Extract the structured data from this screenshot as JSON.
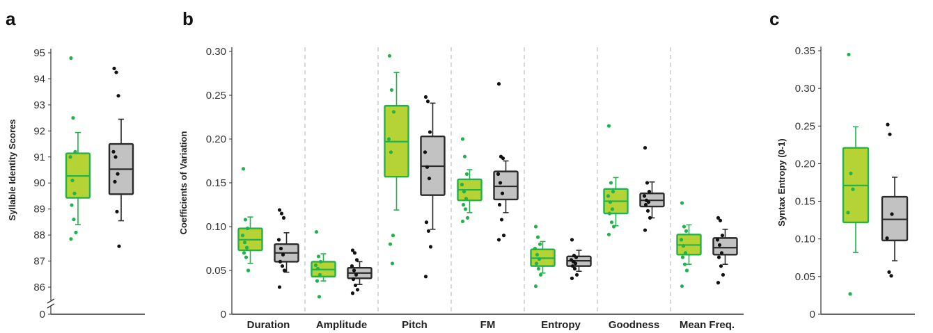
{
  "colors": {
    "group1_fill": "#b5d334",
    "group1_stroke": "#22b24c",
    "group1_dot": "#22b24c",
    "group2_fill": "#c2c2c2",
    "group2_stroke": "#2a2a2a",
    "group2_dot": "#111111",
    "divider": "#bdbdbd"
  },
  "chart_data": [
    {
      "panel": "a",
      "type": "box",
      "ylabel": "Syllable Identity Scores",
      "yticks": [
        0,
        86,
        87,
        88,
        89,
        90,
        91,
        92,
        93,
        94,
        95
      ],
      "axis_break": true,
      "ylim": [
        86,
        95
      ],
      "groups": [
        {
          "q1": 89.43,
          "median": 90.27,
          "q3": 91.14,
          "whisker_low": 88.4,
          "whisker_high": 91.94,
          "points": [
            94.8,
            92.5,
            91.2,
            91.0,
            90.1,
            89.6,
            89.15,
            88.6,
            88.1,
            87.85
          ]
        },
        {
          "q1": 89.57,
          "median": 90.53,
          "q3": 91.5,
          "whisker_low": 88.55,
          "whisker_high": 92.45,
          "points": [
            94.4,
            94.25,
            93.35,
            91.2,
            91.0,
            90.35,
            90.05,
            88.9,
            87.57
          ]
        }
      ]
    },
    {
      "panel": "b",
      "type": "box",
      "ylabel": "Coefficients of Variation",
      "yticks": [
        "0",
        "0.05",
        "0.10",
        "0.15",
        "0.20",
        "0.25",
        "0.30"
      ],
      "ylim": [
        0,
        0.3
      ],
      "categories": [
        "Duration",
        "Amplitude",
        "Pitch",
        "FM",
        "Entropy",
        "Goodness",
        "Mean Freq."
      ],
      "groups": [
        [
          {
            "q1": 0.073,
            "median": 0.085,
            "q3": 0.098,
            "whisker_low": 0.058,
            "whisker_high": 0.111,
            "points": [
              0.166,
              0.108,
              0.098,
              0.09,
              0.082,
              0.076,
              0.07,
              0.065,
              0.05
            ]
          },
          {
            "q1": 0.06,
            "median": 0.07,
            "q3": 0.08,
            "whisker_low": 0.048,
            "whisker_high": 0.093,
            "points": [
              0.119,
              0.115,
              0.11,
              0.085,
              0.075,
              0.068,
              0.06,
              0.055,
              0.05,
              0.031
            ]
          }
        ],
        [
          {
            "q1": 0.043,
            "median": 0.051,
            "q3": 0.06,
            "whisker_low": 0.038,
            "whisker_high": 0.069,
            "points": [
              0.094,
              0.066,
              0.06,
              0.056,
              0.052,
              0.045,
              0.038,
              0.02
            ]
          },
          {
            "q1": 0.041,
            "median": 0.047,
            "q3": 0.053,
            "whisker_low": 0.034,
            "whisker_high": 0.06,
            "points": [
              0.073,
              0.07,
              0.062,
              0.055,
              0.05,
              0.045,
              0.04,
              0.033,
              0.028,
              0.024
            ]
          }
        ],
        [
          {
            "q1": 0.157,
            "median": 0.197,
            "q3": 0.238,
            "whisker_low": 0.119,
            "whisker_high": 0.276,
            "points": [
              0.295,
              0.256,
              0.231,
              0.2,
              0.185,
              0.09,
              0.08,
              0.058
            ]
          },
          {
            "q1": 0.136,
            "median": 0.169,
            "q3": 0.203,
            "whisker_low": 0.097,
            "whisker_high": 0.241,
            "points": [
              0.248,
              0.243,
              0.208,
              0.185,
              0.168,
              0.155,
              0.105,
              0.095,
              0.077,
              0.043
            ]
          }
        ],
        [
          {
            "q1": 0.13,
            "median": 0.142,
            "q3": 0.154,
            "whisker_low": 0.116,
            "whisker_high": 0.165,
            "points": [
              0.2,
              0.18,
              0.16,
              0.148,
              0.14,
              0.132,
              0.125,
              0.12,
              0.11,
              0.106
            ]
          },
          {
            "q1": 0.131,
            "median": 0.146,
            "q3": 0.163,
            "whisker_low": 0.116,
            "whisker_high": 0.175,
            "points": [
              0.263,
              0.18,
              0.178,
              0.16,
              0.15,
              0.138,
              0.125,
              0.108,
              0.09,
              0.085
            ]
          }
        ],
        [
          {
            "q1": 0.055,
            "median": 0.064,
            "q3": 0.074,
            "whisker_low": 0.047,
            "whisker_high": 0.083,
            "points": [
              0.1,
              0.088,
              0.08,
              0.075,
              0.068,
              0.063,
              0.058,
              0.052,
              0.045,
              0.032
            ]
          },
          {
            "q1": 0.055,
            "median": 0.061,
            "q3": 0.066,
            "whisker_low": 0.049,
            "whisker_high": 0.073,
            "points": [
              0.085,
              0.067,
              0.065,
              0.062,
              0.06,
              0.058,
              0.055,
              0.052,
              0.045,
              0.041
            ]
          }
        ],
        [
          {
            "q1": 0.115,
            "median": 0.129,
            "q3": 0.143,
            "whisker_low": 0.101,
            "whisker_high": 0.156,
            "points": [
              0.215,
              0.15,
              0.14,
              0.135,
              0.128,
              0.12,
              0.115,
              0.105,
              0.1,
              0.091
            ]
          },
          {
            "q1": 0.123,
            "median": 0.13,
            "q3": 0.138,
            "whisker_low": 0.11,
            "whisker_high": 0.151,
            "points": [
              0.19,
              0.15,
              0.14,
              0.135,
              0.13,
              0.128,
              0.125,
              0.118,
              0.11,
              0.096
            ]
          }
        ],
        [
          {
            "q1": 0.068,
            "median": 0.079,
            "q3": 0.091,
            "whisker_low": 0.057,
            "whisker_high": 0.102,
            "points": [
              0.127,
              0.1,
              0.095,
              0.085,
              0.078,
              0.07,
              0.065,
              0.057,
              0.05,
              0.032
            ]
          },
          {
            "q1": 0.068,
            "median": 0.076,
            "q3": 0.087,
            "whisker_low": 0.057,
            "whisker_high": 0.097,
            "points": [
              0.11,
              0.107,
              0.09,
              0.085,
              0.079,
              0.07,
              0.065,
              0.055,
              0.045,
              0.036
            ]
          }
        ]
      ]
    },
    {
      "panel": "c",
      "type": "box",
      "ylabel": "Syntax Entropy (0-1)",
      "yticks": [
        "0",
        "0.05",
        "0.10",
        "0.15",
        "0.20",
        "0.25",
        "0.30",
        "0.35"
      ],
      "ylim": [
        0,
        0.35
      ],
      "groups": [
        {
          "q1": 0.122,
          "median": 0.171,
          "q3": 0.221,
          "whisker_low": 0.082,
          "whisker_high": 0.249,
          "points": [
            0.345,
            0.187,
            0.166,
            0.135,
            0.027
          ]
        },
        {
          "q1": 0.098,
          "median": 0.126,
          "q3": 0.156,
          "whisker_low": 0.071,
          "whisker_high": 0.182,
          "points": [
            0.252,
            0.239,
            0.133,
            0.101,
            0.056,
            0.051
          ]
        }
      ]
    }
  ],
  "panels": {
    "a": "a",
    "b": "b",
    "c": "c"
  }
}
